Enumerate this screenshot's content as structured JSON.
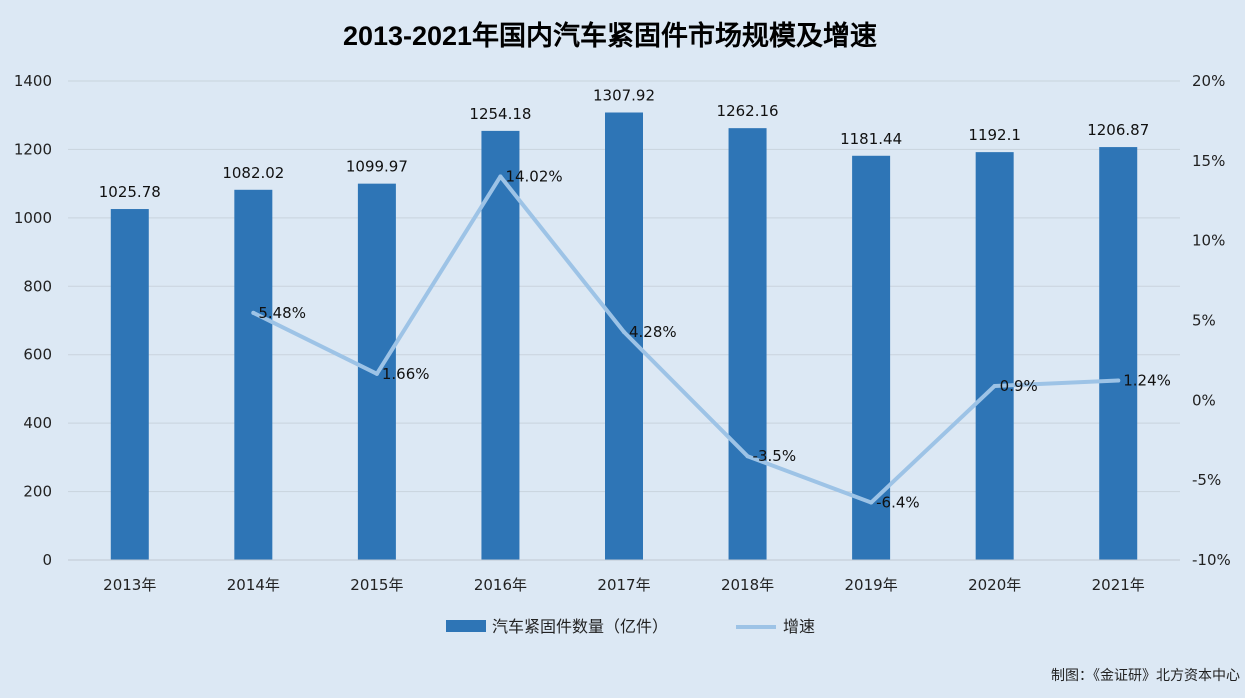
{
  "chart_data": {
    "type": "bar",
    "title": "2013-2021年国内汽车紧固件市场规模及增速",
    "categories": [
      "2013年",
      "2014年",
      "2015年",
      "2016年",
      "2017年",
      "2018年",
      "2019年",
      "2020年",
      "2021年"
    ],
    "series": [
      {
        "name": "汽车紧固件数量（亿件）",
        "type": "bar",
        "axis": "left",
        "color": "#2e75b6",
        "values": [
          1025.78,
          1082.02,
          1099.97,
          1254.18,
          1307.92,
          1262.16,
          1181.44,
          1192.1,
          1206.87
        ],
        "labels": [
          "1025.78",
          "1082.02",
          "1099.97",
          "1254.18",
          "1307.92",
          "1262.16",
          "1181.44",
          "1192.1",
          "1206.87"
        ]
      },
      {
        "name": "增速",
        "type": "line",
        "axis": "right",
        "color": "#9dc3e6",
        "values": [
          null,
          5.48,
          1.66,
          14.02,
          4.28,
          -3.5,
          -6.4,
          0.9,
          1.24
        ],
        "labels": [
          "",
          "5.48%",
          "1.66%",
          "14.02%",
          "4.28%",
          "-3.5%",
          "-6.4%",
          "0.9%",
          "1.24%"
        ]
      }
    ],
    "y_left": {
      "min": 0,
      "max": 1400,
      "ticks": [
        "0",
        "200",
        "400",
        "600",
        "800",
        "1000",
        "1200",
        "1400"
      ]
    },
    "y_right": {
      "min": -10,
      "max": 20,
      "ticks": [
        "-10%",
        "-5%",
        "0%",
        "5%",
        "10%",
        "15%",
        "20%"
      ]
    },
    "grid": true,
    "legend_position": "bottom"
  },
  "source": "制图：《金证研》北方资本中心"
}
